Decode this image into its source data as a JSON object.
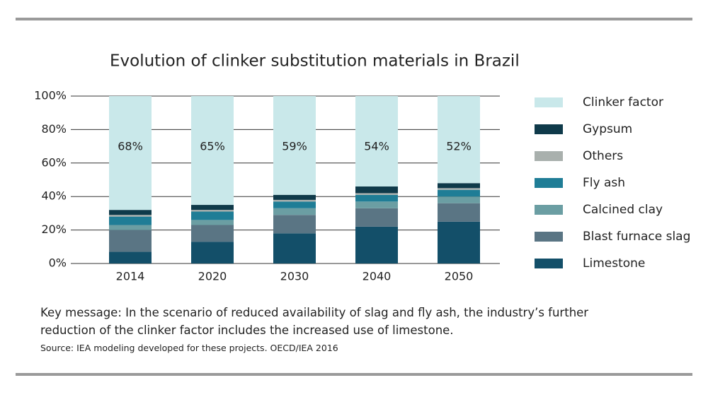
{
  "chart_data": {
    "type": "stacked-bar",
    "title": "Evolution of clinker substitution materials in Brazil",
    "categories": [
      "2014",
      "2020",
      "2030",
      "2040",
      "2050"
    ],
    "series": [
      {
        "name": "Limestone",
        "color": "#134f69",
        "values": [
          7,
          13,
          18,
          22,
          25
        ]
      },
      {
        "name": "Blast furnace slag",
        "color": "#5a7584",
        "values": [
          13,
          10,
          11,
          11,
          11
        ]
      },
      {
        "name": "Calcined clay",
        "color": "#6b9ea3",
        "values": [
          3,
          3,
          4,
          4,
          4
        ]
      },
      {
        "name": "Fly ash",
        "color": "#1f7d96",
        "values": [
          5,
          5,
          4,
          4,
          4
        ]
      },
      {
        "name": "Others",
        "color": "#a9b0ad",
        "values": [
          1,
          1,
          1,
          1,
          1
        ]
      },
      {
        "name": "Gypsum",
        "color": "#0f3a4a",
        "values": [
          3,
          3,
          3,
          4,
          3
        ]
      },
      {
        "name": "Clinker factor",
        "color": "#c9e8ea",
        "values": [
          68,
          65,
          59,
          54,
          52
        ],
        "value_labels": [
          "68%",
          "65%",
          "59%",
          "54%",
          "52%"
        ]
      }
    ],
    "ylim": [
      0,
      100
    ],
    "yticks": [
      {
        "value": 0,
        "label": "0%"
      },
      {
        "value": 20,
        "label": "20%"
      },
      {
        "value": 40,
        "label": "40%"
      },
      {
        "value": 60,
        "label": "60%"
      },
      {
        "value": 80,
        "label": "80%"
      },
      {
        "value": 100,
        "label": "100%"
      }
    ],
    "grid": true,
    "legend": "right"
  },
  "key_message": "Key message: In the scenario of reduced availability of slag and fly ash, the industry’s further reduction of the clinker factor includes the increased use of limestone.",
  "source": "Source: IEA modeling developed for these projects. OECD/IEA 2016"
}
